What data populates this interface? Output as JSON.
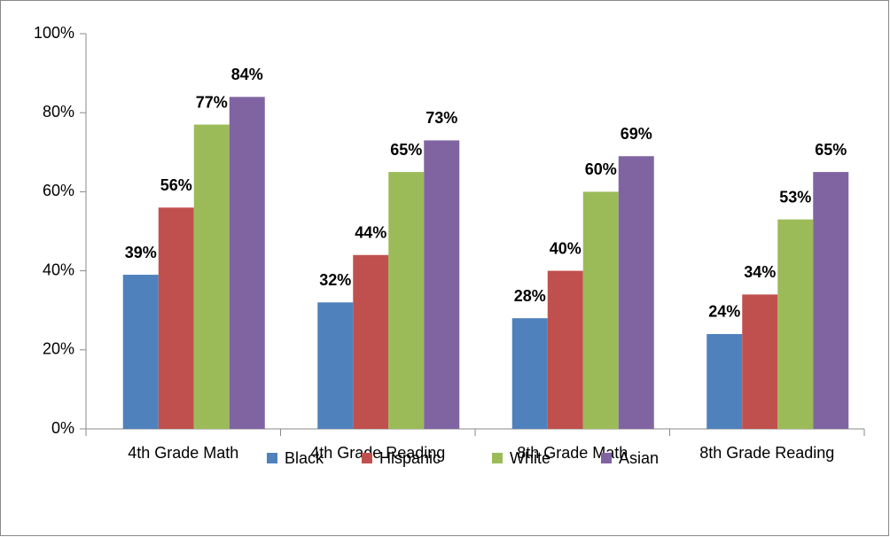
{
  "chart_data": {
    "type": "bar",
    "categories": [
      "4th Grade Math",
      "4th Grade Reading",
      "8th Grade Math",
      "8th Grade Reading"
    ],
    "series": [
      {
        "name": "Black",
        "color": "#4f81bd",
        "values": [
          39,
          32,
          28,
          24
        ],
        "value_labels": [
          "39%",
          "32%",
          "28%",
          "24%"
        ]
      },
      {
        "name": "Hispanic",
        "color": "#c0504d",
        "values": [
          56,
          44,
          40,
          34
        ],
        "value_labels": [
          "56%",
          "44%",
          "40%",
          "34%"
        ]
      },
      {
        "name": "White",
        "color": "#9bbb59",
        "values": [
          77,
          65,
          60,
          53
        ],
        "value_labels": [
          "77%",
          "65%",
          "60%",
          "53%"
        ]
      },
      {
        "name": "Asian",
        "color": "#8064a2",
        "values": [
          84,
          73,
          69,
          65
        ],
        "value_labels": [
          "84%",
          "73%",
          "69%",
          "65%"
        ]
      }
    ],
    "ylim": [
      0,
      100
    ],
    "yticks": [
      {
        "value": 0,
        "label": "0%"
      },
      {
        "value": 20,
        "label": "20%"
      },
      {
        "value": 40,
        "label": "40%"
      },
      {
        "value": 60,
        "label": "60%"
      },
      {
        "value": 80,
        "label": "80%"
      },
      {
        "value": 100,
        "label": "100%"
      }
    ],
    "legend": "bottom",
    "grid": false
  }
}
